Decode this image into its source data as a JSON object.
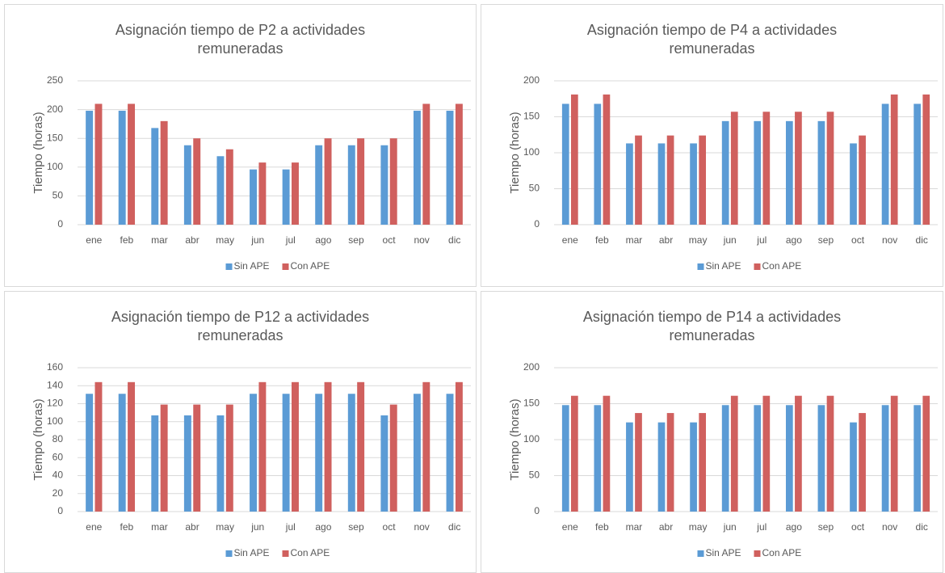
{
  "chart_data": [
    {
      "type": "bar",
      "title": "Asignación tiempo de P2 a actividades remuneradas",
      "y_label": "Tiempo (horas)",
      "categories": [
        "ene",
        "feb",
        "mar",
        "abr",
        "may",
        "jun",
        "jul",
        "ago",
        "sep",
        "oct",
        "nov",
        "dic"
      ],
      "series": [
        {
          "name": "Sin APE",
          "color": "#5b9bd5",
          "values": [
            198,
            198,
            168,
            138,
            119,
            96,
            96,
            138,
            138,
            138,
            198,
            198
          ]
        },
        {
          "name": "Con APE",
          "color": "#d0605e",
          "values": [
            210,
            210,
            180,
            150,
            131,
            108,
            108,
            150,
            150,
            150,
            210,
            210
          ]
        }
      ],
      "ylim": [
        0,
        250
      ],
      "yticks": [
        0,
        50,
        100,
        150,
        200,
        250
      ],
      "grid": true,
      "legend": "bottom"
    },
    {
      "type": "bar",
      "title": "Asignación tiempo de P4 a actividades remuneradas",
      "y_label": "Tiempo (horas)",
      "categories": [
        "ene",
        "feb",
        "mar",
        "abr",
        "may",
        "jun",
        "jul",
        "ago",
        "sep",
        "oct",
        "nov",
        "dic"
      ],
      "series": [
        {
          "name": "Sin APE",
          "color": "#5b9bd5",
          "values": [
            168,
            168,
            113,
            113,
            113,
            144,
            144,
            144,
            144,
            113,
            168,
            168
          ]
        },
        {
          "name": "Con APE",
          "color": "#d0605e",
          "values": [
            181,
            181,
            124,
            124,
            124,
            157,
            157,
            157,
            157,
            124,
            181,
            181
          ]
        }
      ],
      "ylim": [
        0,
        200
      ],
      "yticks": [
        0,
        50,
        100,
        150,
        200
      ],
      "grid": true,
      "legend": "bottom"
    },
    {
      "type": "bar",
      "title": "Asignación tiempo de P12 a actividades remuneradas",
      "y_label": "Tiempo (horas)",
      "categories": [
        "ene",
        "feb",
        "mar",
        "abr",
        "may",
        "jun",
        "jul",
        "ago",
        "sep",
        "oct",
        "nov",
        "dic"
      ],
      "series": [
        {
          "name": "Sin APE",
          "color": "#5b9bd5",
          "values": [
            131,
            131,
            107,
            107,
            107,
            131,
            131,
            131,
            131,
            107,
            131,
            131
          ]
        },
        {
          "name": "Con APE",
          "color": "#d0605e",
          "values": [
            144,
            144,
            119,
            119,
            119,
            144,
            144,
            144,
            144,
            119,
            144,
            144
          ]
        }
      ],
      "ylim": [
        0,
        160
      ],
      "yticks": [
        0,
        20,
        40,
        60,
        80,
        100,
        120,
        140,
        160
      ],
      "grid": true,
      "legend": "bottom"
    },
    {
      "type": "bar",
      "title": "Asignación tiempo de P14 a actividades remuneradas",
      "y_label": "Tiempo (horas)",
      "categories": [
        "ene",
        "feb",
        "mar",
        "abr",
        "may",
        "jun",
        "jul",
        "ago",
        "sep",
        "oct",
        "nov",
        "dic"
      ],
      "series": [
        {
          "name": "Sin APE",
          "color": "#5b9bd5",
          "values": [
            148,
            148,
            124,
            124,
            124,
            148,
            148,
            148,
            148,
            124,
            148,
            148
          ]
        },
        {
          "name": "Con APE",
          "color": "#d0605e",
          "values": [
            161,
            161,
            137,
            137,
            137,
            161,
            161,
            161,
            161,
            137,
            161,
            161
          ]
        }
      ],
      "ylim": [
        0,
        200
      ],
      "yticks": [
        0,
        50,
        100,
        150,
        200
      ],
      "grid": true,
      "legend": "bottom"
    }
  ]
}
